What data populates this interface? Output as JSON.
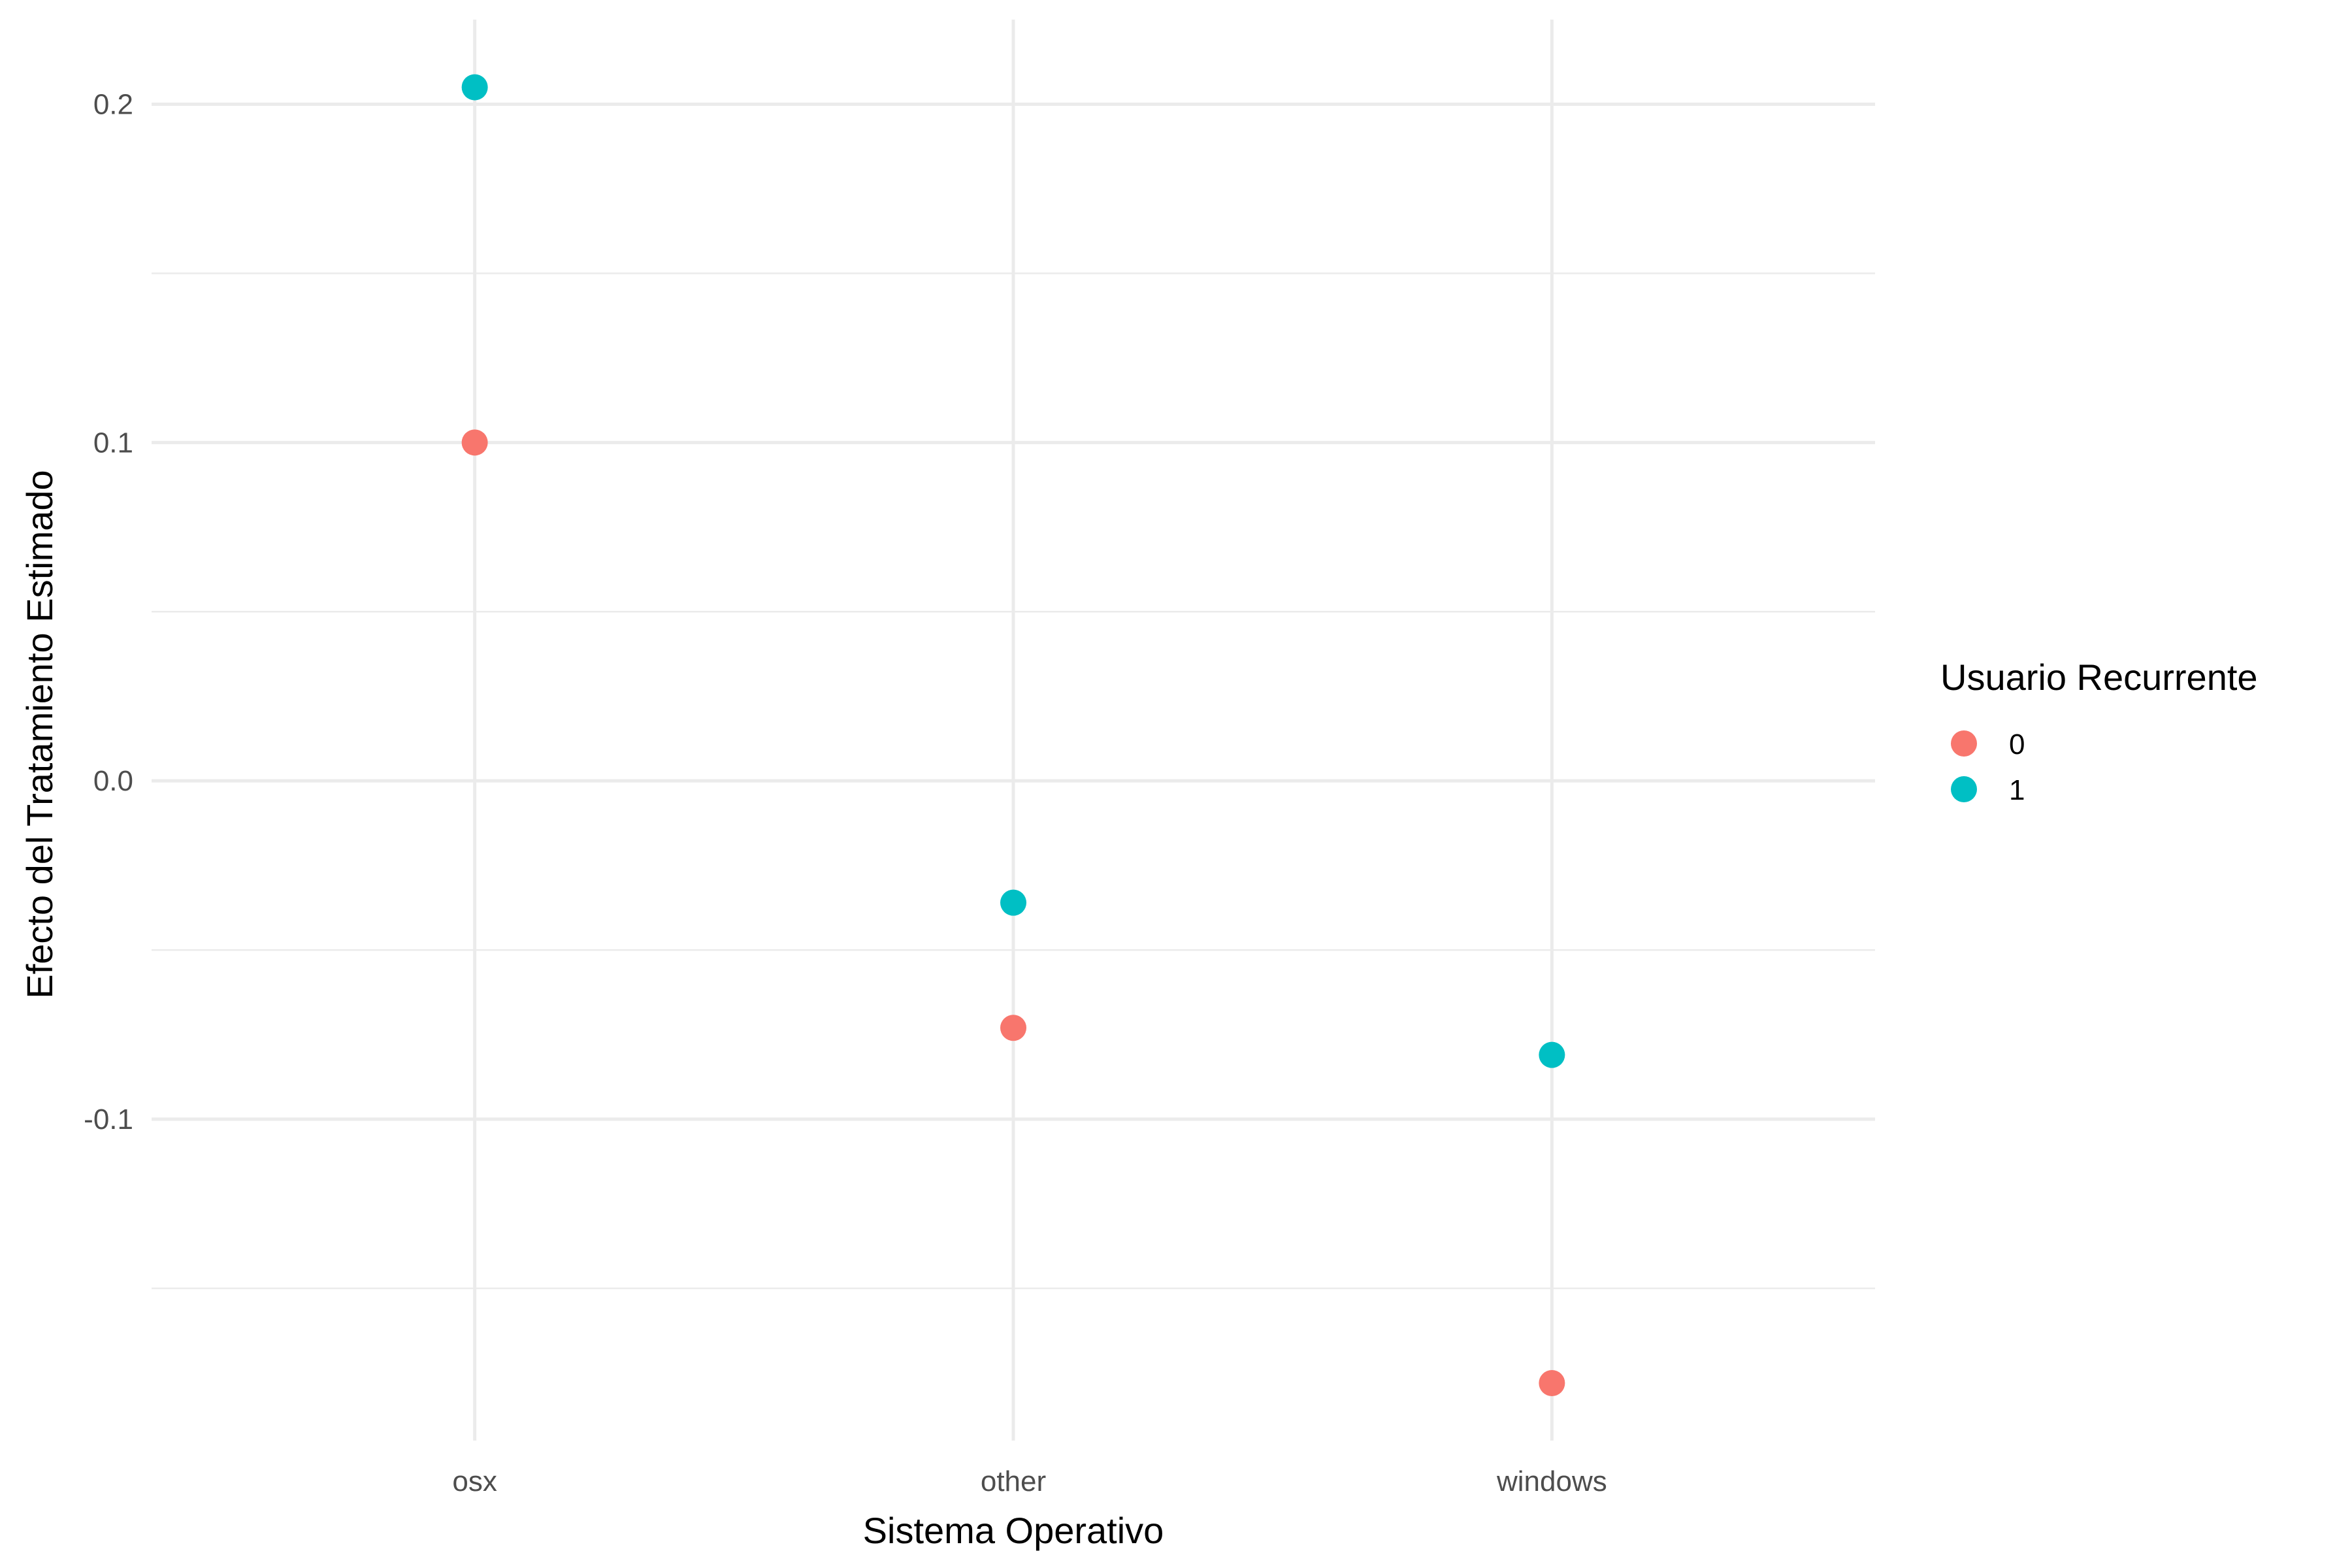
{
  "chart_data": {
    "type": "scatter",
    "title": "",
    "xlabel": "Sistema Operativo",
    "ylabel": "Efecto del Tratamiento Estimado",
    "categories": [
      "osx",
      "other",
      "windows"
    ],
    "ylim": [
      -0.195,
      0.225
    ],
    "y_ticks": [
      -0.1,
      0.0,
      0.1,
      0.2
    ],
    "y_tick_labels": [
      "-0.1",
      "0.0",
      "0.1",
      "0.2"
    ],
    "y_minor_ticks": [
      -0.15,
      -0.05,
      0.05,
      0.15
    ],
    "grid": true,
    "legend": {
      "title": "Usuario Recurrente",
      "placement": "right"
    },
    "series": [
      {
        "name": "0",
        "color": "#F8766D",
        "values": [
          0.1,
          -0.073,
          -0.178
        ]
      },
      {
        "name": "1",
        "color": "#00BFC4",
        "values": [
          0.205,
          -0.036,
          -0.081
        ]
      }
    ]
  }
}
